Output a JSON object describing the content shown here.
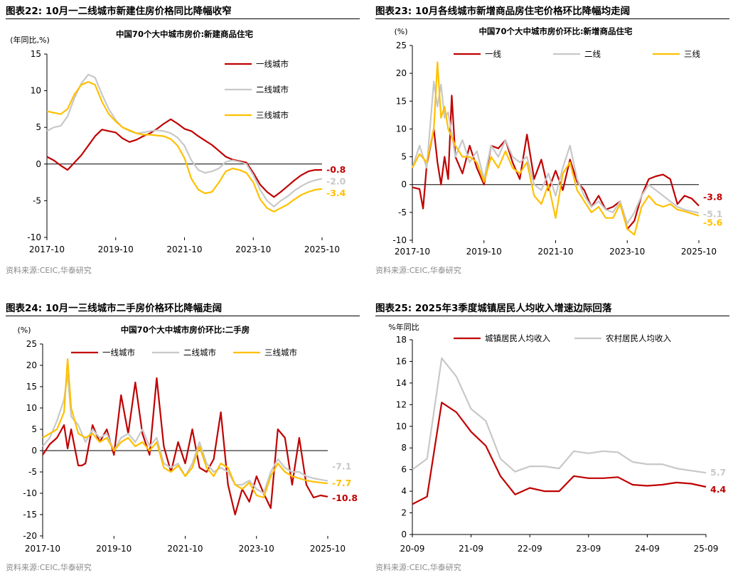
{
  "panels": [
    {
      "title": "图表22:  10月一二线城市新建住房价格同比降幅收窄",
      "source": "资料来源:CEIC,华泰研究"
    },
    {
      "title": "图表23:  10月各线城市新增商品房住宅价格环比降幅均走阔",
      "source": "资料来源:CEIC,华泰研究"
    },
    {
      "title": "图表24:  10月一三线城市二手房价格环比降幅走阔",
      "source": "资料来源:CEIC,华泰研究"
    },
    {
      "title": "图表25:  2025年3季度城镇居民人均收入增速边际回落",
      "source": "资料来源:CEIC,华泰研究"
    }
  ],
  "chart_data": [
    {
      "type": "line",
      "title": "中国70个大中城市房价:新建商品住宅",
      "ylabel": "(年同比,%)",
      "ylim": [
        -10,
        15
      ],
      "yticks": [
        -10,
        -5,
        0,
        5,
        10,
        15
      ],
      "x_tick_labels": [
        "2017-10",
        "2019-10",
        "2021-10",
        "2023-10",
        "2025-10"
      ],
      "x_range": [
        2017.8,
        2025.8
      ],
      "legend": "right",
      "series": [
        {
          "name": "一线城市",
          "color": "#C00000",
          "end_label": "-0.8",
          "x": [
            2017.8,
            2018.0,
            2018.2,
            2018.4,
            2018.6,
            2018.8,
            2019.0,
            2019.2,
            2019.4,
            2019.6,
            2019.8,
            2020.0,
            2020.2,
            2020.4,
            2020.6,
            2020.8,
            2021.0,
            2021.2,
            2021.4,
            2021.6,
            2021.8,
            2022.0,
            2022.2,
            2022.4,
            2022.6,
            2022.8,
            2023.0,
            2023.2,
            2023.4,
            2023.6,
            2023.8,
            2024.0,
            2024.2,
            2024.4,
            2024.6,
            2024.8,
            2025.0,
            2025.2,
            2025.4,
            2025.6,
            2025.8
          ],
          "y": [
            1.0,
            0.5,
            -0.2,
            -0.8,
            0.2,
            1.2,
            2.5,
            3.8,
            4.7,
            4.5,
            4.3,
            3.5,
            3.0,
            3.3,
            3.8,
            4.2,
            4.8,
            5.5,
            6.1,
            5.5,
            4.8,
            4.5,
            3.8,
            3.2,
            2.6,
            1.8,
            1.0,
            0.6,
            0.4,
            0.2,
            -1.2,
            -2.8,
            -3.8,
            -4.5,
            -3.8,
            -3.0,
            -2.2,
            -1.5,
            -1.0,
            -0.8,
            -0.8
          ]
        },
        {
          "name": "二线城市",
          "color": "#C8C8C8",
          "end_label": "-2.0",
          "x": [
            2017.8,
            2018.0,
            2018.2,
            2018.4,
            2018.6,
            2018.8,
            2019.0,
            2019.2,
            2019.4,
            2019.6,
            2019.8,
            2020.0,
            2020.2,
            2020.4,
            2020.6,
            2020.8,
            2021.0,
            2021.2,
            2021.4,
            2021.6,
            2021.8,
            2022.0,
            2022.2,
            2022.4,
            2022.6,
            2022.8,
            2023.0,
            2023.2,
            2023.4,
            2023.6,
            2023.8,
            2024.0,
            2024.2,
            2024.4,
            2024.6,
            2024.8,
            2025.0,
            2025.2,
            2025.4,
            2025.6,
            2025.8
          ],
          "y": [
            4.5,
            5.0,
            5.2,
            6.5,
            9.0,
            11.0,
            12.2,
            11.8,
            9.5,
            7.5,
            6.0,
            5.0,
            4.5,
            4.2,
            4.3,
            4.5,
            4.6,
            4.5,
            4.2,
            3.6,
            2.5,
            0.5,
            -0.8,
            -1.2,
            -1.0,
            -0.6,
            0.3,
            0.5,
            0.3,
            0.0,
            -1.5,
            -3.5,
            -5.0,
            -5.8,
            -5.0,
            -4.4,
            -3.6,
            -3.0,
            -2.5,
            -2.2,
            -2.0
          ]
        },
        {
          "name": "三线城市",
          "color": "#FFC000",
          "end_label": "-3.4",
          "x": [
            2017.8,
            2018.0,
            2018.2,
            2018.4,
            2018.6,
            2018.8,
            2019.0,
            2019.2,
            2019.4,
            2019.6,
            2019.8,
            2020.0,
            2020.2,
            2020.4,
            2020.6,
            2020.8,
            2021.0,
            2021.2,
            2021.4,
            2021.6,
            2021.8,
            2022.0,
            2022.2,
            2022.4,
            2022.6,
            2022.8,
            2023.0,
            2023.2,
            2023.4,
            2023.6,
            2023.8,
            2024.0,
            2024.2,
            2024.4,
            2024.6,
            2024.8,
            2025.0,
            2025.2,
            2025.4,
            2025.6,
            2025.8
          ],
          "y": [
            7.2,
            7.0,
            6.8,
            7.5,
            9.5,
            10.8,
            11.2,
            10.8,
            8.5,
            6.8,
            5.8,
            5.0,
            4.6,
            4.2,
            4.0,
            4.0,
            3.9,
            3.8,
            3.4,
            2.5,
            0.8,
            -2.0,
            -3.5,
            -4.0,
            -3.8,
            -2.5,
            -1.0,
            -0.6,
            -0.8,
            -1.2,
            -2.5,
            -4.8,
            -6.0,
            -6.5,
            -6.0,
            -5.5,
            -4.8,
            -4.2,
            -3.8,
            -3.5,
            -3.4
          ]
        }
      ]
    },
    {
      "type": "line",
      "title": "中国70个大中城市房价环比:新增商品住宅",
      "ylabel": "(%)",
      "ylim": [
        -10,
        25
      ],
      "yticks": [
        -10,
        -5,
        0,
        5,
        10,
        15,
        20,
        25
      ],
      "x_tick_labels": [
        "2017-10",
        "2019-10",
        "2021-10",
        "2023-10",
        "2025-10"
      ],
      "x_range": [
        2017.8,
        2025.8
      ],
      "legend": "top",
      "series": [
        {
          "name": "一线",
          "color": "#C00000",
          "end_label": "-3.8",
          "x": [
            2017.8,
            2018.0,
            2018.1,
            2018.2,
            2018.4,
            2018.5,
            2018.6,
            2018.7,
            2018.8,
            2018.9,
            2019.0,
            2019.2,
            2019.4,
            2019.6,
            2019.8,
            2020.0,
            2020.2,
            2020.4,
            2020.6,
            2020.8,
            2021.0,
            2021.2,
            2021.4,
            2021.6,
            2021.8,
            2022.0,
            2022.2,
            2022.4,
            2022.6,
            2022.8,
            2023.0,
            2023.2,
            2023.4,
            2023.6,
            2023.8,
            2024.0,
            2024.2,
            2024.4,
            2024.6,
            2024.8,
            2025.0,
            2025.2,
            2025.4,
            2025.6,
            2025.8
          ],
          "y": [
            -0.5,
            -0.8,
            -4.3,
            3.5,
            10.0,
            4.0,
            0.0,
            5.0,
            1.0,
            16.0,
            5.0,
            2.0,
            7.0,
            3.0,
            0.0,
            7.0,
            6.5,
            8.0,
            4.0,
            1.0,
            9.0,
            1.0,
            4.5,
            -1.0,
            2.5,
            -1.0,
            4.5,
            0.5,
            -1.0,
            -4.0,
            -2.0,
            -4.5,
            -4.0,
            -3.0,
            -8.0,
            -6.5,
            -2.0,
            1.0,
            1.5,
            1.8,
            1.0,
            -3.5,
            -2.0,
            -2.5,
            -3.8
          ]
        },
        {
          "name": "二线",
          "color": "#C8C8C8",
          "end_label": "-5.1",
          "x": [
            2017.8,
            2018.0,
            2018.2,
            2018.4,
            2018.5,
            2018.6,
            2018.7,
            2018.8,
            2019.0,
            2019.2,
            2019.4,
            2019.6,
            2019.8,
            2020.0,
            2020.2,
            2020.4,
            2020.6,
            2020.8,
            2021.0,
            2021.2,
            2021.4,
            2021.6,
            2021.8,
            2022.0,
            2022.2,
            2022.4,
            2022.6,
            2022.8,
            2023.0,
            2023.2,
            2023.4,
            2023.6,
            2023.8,
            2024.0,
            2024.2,
            2024.4,
            2024.6,
            2024.8,
            2025.0,
            2025.2,
            2025.4,
            2025.6,
            2025.8
          ],
          "y": [
            3.0,
            7.0,
            3.0,
            18.5,
            14.0,
            18.0,
            12.0,
            13.0,
            5.0,
            8.0,
            4.0,
            6.0,
            1.0,
            7.0,
            5.0,
            8.0,
            5.0,
            4.0,
            5.0,
            0.0,
            -1.0,
            2.0,
            -2.0,
            3.0,
            7.0,
            1.0,
            -2.0,
            -4.0,
            -3.0,
            -4.5,
            -5.0,
            -3.0,
            -7.0,
            -5.0,
            -2.0,
            0.0,
            -1.0,
            -2.0,
            -3.0,
            -4.0,
            -4.5,
            -4.8,
            -5.1
          ]
        },
        {
          "name": "三线",
          "color": "#FFC000",
          "end_label": "-5.6",
          "x": [
            2017.8,
            2018.0,
            2018.2,
            2018.4,
            2018.5,
            2018.6,
            2018.7,
            2018.8,
            2019.0,
            2019.2,
            2019.4,
            2019.6,
            2019.8,
            2020.0,
            2020.2,
            2020.4,
            2020.6,
            2020.8,
            2021.0,
            2021.2,
            2021.4,
            2021.6,
            2021.8,
            2022.0,
            2022.2,
            2022.4,
            2022.6,
            2022.8,
            2023.0,
            2023.2,
            2023.4,
            2023.6,
            2023.8,
            2024.0,
            2024.2,
            2024.4,
            2024.6,
            2024.8,
            2025.0,
            2025.2,
            2025.4,
            2025.6,
            2025.8
          ],
          "y": [
            3.0,
            5.5,
            4.0,
            10.0,
            22.0,
            12.0,
            14.0,
            10.0,
            7.0,
            5.0,
            5.0,
            4.0,
            0.5,
            5.0,
            3.0,
            6.0,
            3.0,
            2.0,
            4.0,
            -2.0,
            -3.5,
            0.0,
            -6.0,
            2.0,
            4.0,
            -1.0,
            -3.0,
            -5.0,
            -4.0,
            -6.0,
            -6.0,
            -3.5,
            -8.0,
            -9.0,
            -4.0,
            -2.0,
            -3.5,
            -4.0,
            -3.5,
            -4.5,
            -4.8,
            -5.2,
            -5.6
          ]
        }
      ]
    },
    {
      "type": "line",
      "title": "中国70个大中城市房价环比:二手房",
      "ylabel": "(%)",
      "ylim": [
        -20,
        25
      ],
      "yticks": [
        -20,
        -15,
        -10,
        -5,
        0,
        5,
        10,
        15,
        20,
        25
      ],
      "x_tick_labels": [
        "2017-10",
        "2019-10",
        "2021-10",
        "2023-10",
        "2025-10"
      ],
      "x_range": [
        2017.8,
        2025.8
      ],
      "legend": "top",
      "series": [
        {
          "name": "一线城市",
          "color": "#C00000",
          "end_label": "-10.8",
          "x": [
            2017.8,
            2018.0,
            2018.2,
            2018.4,
            2018.5,
            2018.6,
            2018.8,
            2018.9,
            2019.0,
            2019.2,
            2019.4,
            2019.6,
            2019.8,
            2020.0,
            2020.2,
            2020.4,
            2020.6,
            2020.8,
            2021.0,
            2021.2,
            2021.4,
            2021.6,
            2021.8,
            2022.0,
            2022.2,
            2022.4,
            2022.6,
            2022.8,
            2023.0,
            2023.2,
            2023.4,
            2023.6,
            2023.8,
            2024.0,
            2024.2,
            2024.4,
            2024.6,
            2024.8,
            2025.0,
            2025.2,
            2025.4,
            2025.6,
            2025.8
          ],
          "y": [
            -1.0,
            1.5,
            3.0,
            6.0,
            0.5,
            5.0,
            -3.5,
            -3.5,
            -3.0,
            6.0,
            2.0,
            5.0,
            -1.0,
            13.0,
            4.0,
            16.0,
            4.0,
            -1.0,
            17.0,
            1.0,
            -5.0,
            2.0,
            -3.0,
            5.0,
            -4.0,
            -5.0,
            -2.0,
            9.0,
            -8.0,
            -15.0,
            -9.0,
            -12.0,
            -6.0,
            -10.0,
            -13.5,
            5.0,
            3.0,
            -8.0,
            3.0,
            -8.0,
            -11.0,
            -10.5,
            -10.8
          ]
        },
        {
          "name": "二线城市",
          "color": "#C8C8C8",
          "end_label": "-7.1",
          "x": [
            2017.8,
            2018.0,
            2018.2,
            2018.4,
            2018.5,
            2018.6,
            2018.8,
            2019.0,
            2019.2,
            2019.4,
            2019.6,
            2019.8,
            2020.0,
            2020.2,
            2020.4,
            2020.6,
            2020.8,
            2021.0,
            2021.2,
            2021.4,
            2021.6,
            2021.8,
            2022.0,
            2022.2,
            2022.4,
            2022.6,
            2022.8,
            2023.0,
            2023.2,
            2023.4,
            2023.6,
            2023.8,
            2024.0,
            2024.2,
            2024.4,
            2024.6,
            2024.8,
            2025.0,
            2025.2,
            2025.4,
            2025.6,
            2025.8
          ],
          "y": [
            1.0,
            3.0,
            7.0,
            12.0,
            18.0,
            8.0,
            6.0,
            2.0,
            5.0,
            3.0,
            4.0,
            0.0,
            3.0,
            4.0,
            2.0,
            5.0,
            1.0,
            3.0,
            -3.0,
            -4.0,
            -3.0,
            -6.0,
            -3.0,
            2.0,
            -3.0,
            -5.0,
            -4.0,
            -5.0,
            -8.0,
            -8.0,
            -7.0,
            -9.0,
            -10.0,
            -5.0,
            -2.0,
            -4.0,
            -5.0,
            -5.0,
            -6.0,
            -6.5,
            -6.8,
            -7.1
          ]
        },
        {
          "name": "三线城市",
          "color": "#FFC000",
          "end_label": "-7.7",
          "x": [
            2017.8,
            2018.0,
            2018.2,
            2018.4,
            2018.5,
            2018.6,
            2018.8,
            2019.0,
            2019.2,
            2019.4,
            2019.6,
            2019.8,
            2020.0,
            2020.2,
            2020.4,
            2020.6,
            2020.8,
            2021.0,
            2021.2,
            2021.4,
            2021.6,
            2021.8,
            2022.0,
            2022.2,
            2022.4,
            2022.6,
            2022.8,
            2023.0,
            2023.2,
            2023.4,
            2023.6,
            2023.8,
            2024.0,
            2024.2,
            2024.4,
            2024.6,
            2024.8,
            2025.0,
            2025.2,
            2025.4,
            2025.6,
            2025.8
          ],
          "y": [
            3.0,
            4.0,
            5.0,
            9.0,
            21.5,
            10.0,
            4.0,
            3.0,
            4.0,
            2.0,
            3.0,
            0.0,
            2.0,
            3.0,
            1.0,
            2.0,
            0.0,
            2.0,
            -4.0,
            -5.0,
            -3.5,
            -6.0,
            -4.0,
            1.0,
            -4.0,
            -6.0,
            -3.0,
            -4.0,
            -8.0,
            -9.0,
            -7.5,
            -10.5,
            -11.0,
            -6.0,
            -3.0,
            -5.0,
            -6.0,
            -6.5,
            -7.0,
            -7.3,
            -7.5,
            -7.7
          ]
        }
      ]
    },
    {
      "type": "line",
      "title": "",
      "ylabel": "%年同比",
      "ylim": [
        0,
        18
      ],
      "yticks": [
        0,
        2,
        4,
        6,
        8,
        10,
        12,
        14,
        16,
        18
      ],
      "x_tick_labels": [
        "20-09",
        "21-09",
        "22-09",
        "23-09",
        "24-09",
        "25-09"
      ],
      "x_range": [
        0,
        20
      ],
      "legend": "top",
      "series": [
        {
          "name": "城镇居民人均收入",
          "color": "#C00000",
          "end_label": "4.4",
          "x": [
            0,
            1,
            2,
            3,
            4,
            5,
            6,
            7,
            8,
            9,
            10,
            11,
            12,
            13,
            14,
            15,
            16,
            17,
            18,
            19,
            20
          ],
          "y": [
            2.8,
            3.5,
            12.2,
            11.3,
            9.5,
            8.2,
            5.4,
            3.7,
            4.3,
            4.0,
            4.0,
            5.4,
            5.2,
            5.2,
            5.3,
            4.6,
            4.5,
            4.6,
            4.8,
            4.7,
            4.4
          ]
        },
        {
          "name": "农村居民人均收入",
          "color": "#C8C8C8",
          "end_label": "5.7",
          "x": [
            0,
            1,
            2,
            3,
            4,
            5,
            6,
            7,
            8,
            9,
            10,
            11,
            12,
            13,
            14,
            15,
            16,
            17,
            18,
            19,
            20
          ],
          "y": [
            6.0,
            7.0,
            16.3,
            14.6,
            11.6,
            10.5,
            7.0,
            5.8,
            6.3,
            6.3,
            6.1,
            7.7,
            7.5,
            7.7,
            7.6,
            6.7,
            6.5,
            6.5,
            6.1,
            5.9,
            5.7
          ]
        }
      ]
    }
  ]
}
